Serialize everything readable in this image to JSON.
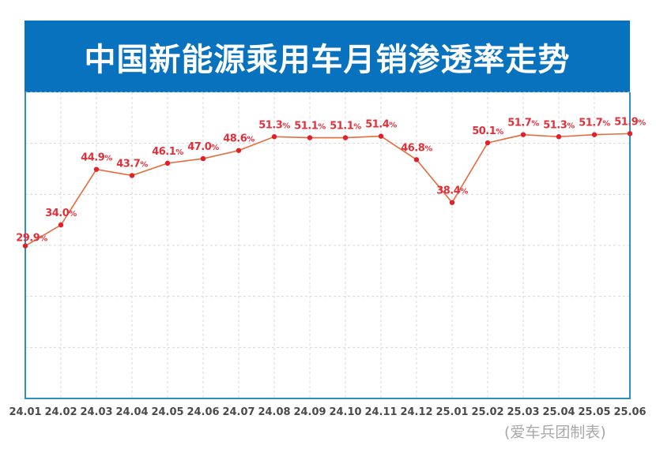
{
  "header": {
    "title": "中国新能源乘用车月销渗透率走势"
  },
  "caption": "(爱车兵团制表)",
  "colors": {
    "title_bg": "#0872bf",
    "frame": "#2b8fc4",
    "line": "#e8693a",
    "marker": "#e0202a",
    "label": "#e0303a",
    "axis_label": "#4a4a4a",
    "grid": "#d8d8d8",
    "caption": "#a9a9a9"
  },
  "chart_data": {
    "type": "line",
    "title": "中国新能源乘用车月销渗透率走势",
    "xlabel": "",
    "ylabel": "",
    "ylim": [
      0,
      60
    ],
    "grid": true,
    "y_grid_values": [
      10,
      20,
      30,
      40,
      50,
      60
    ],
    "value_suffix": "%",
    "categories": [
      "24.01",
      "24.02",
      "24.03",
      "24.04",
      "24.05",
      "24.06",
      "24.07",
      "24.08",
      "24.09",
      "24.10",
      "24.11",
      "24.12",
      "25.01",
      "25.02",
      "25.03",
      "25.04",
      "25.05",
      "25.06"
    ],
    "series": [
      {
        "name": "新能源乘用车月销渗透率",
        "values": [
          29.9,
          34.0,
          44.9,
          43.7,
          46.1,
          47.0,
          48.6,
          51.3,
          51.1,
          51.1,
          51.4,
          46.8,
          38.4,
          50.1,
          51.7,
          51.3,
          51.7,
          51.9
        ]
      }
    ],
    "data_labels": [
      "29.9",
      "34.0",
      "44.9",
      "43.7",
      "46.1",
      "47.0",
      "48.6",
      "51.3",
      "51.1",
      "51.1",
      "51.4",
      "46.8",
      "38.4",
      "50.1",
      "51.7",
      "51.3",
      "51.7",
      "51.9"
    ],
    "source_note": "(爱车兵团制表)"
  }
}
